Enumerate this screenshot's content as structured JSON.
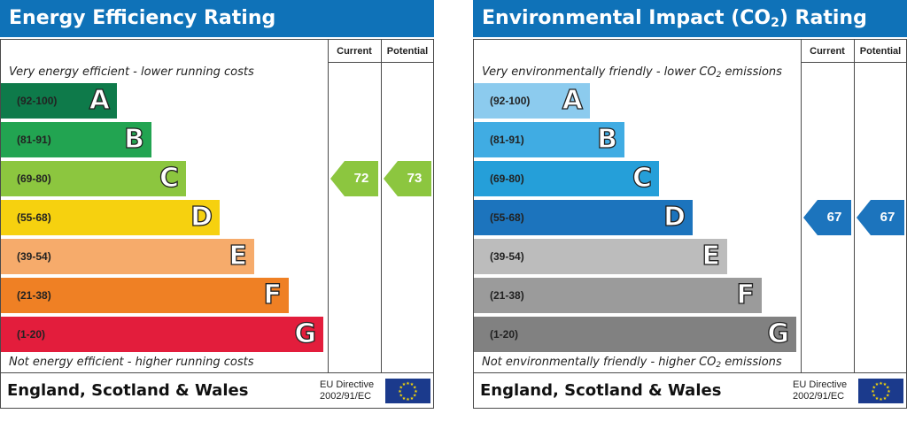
{
  "chart_data": [
    {
      "type": "bar",
      "title": "Energy Efficiency Rating",
      "columns": [
        "Current",
        "Potential"
      ],
      "top_note": "Very energy efficient - lower running costs",
      "bottom_note": "Not energy efficient - higher running costs",
      "bands": [
        {
          "range": "(92-100)",
          "letter": "A",
          "color": "#0e7a4a"
        },
        {
          "range": "(81-91)",
          "letter": "B",
          "color": "#22a451"
        },
        {
          "range": "(69-80)",
          "letter": "C",
          "color": "#8cc63f"
        },
        {
          "range": "(55-68)",
          "letter": "D",
          "color": "#f6d10f"
        },
        {
          "range": "(39-54)",
          "letter": "E",
          "color": "#f6ab6b"
        },
        {
          "range": "(21-38)",
          "letter": "F",
          "color": "#ef8024"
        },
        {
          "range": "(1-20)",
          "letter": "G",
          "color": "#e31d3c"
        }
      ],
      "current": {
        "value": 72,
        "band": "C",
        "color": "#8cc63f"
      },
      "potential": {
        "value": 73,
        "band": "C",
        "color": "#8cc63f"
      },
      "footer": {
        "region": "England, Scotland & Wales",
        "directive_line1": "EU Directive",
        "directive_line2": "2002/91/EC"
      }
    },
    {
      "type": "bar",
      "title": "Environmental Impact (CO",
      "title_sub": "2",
      "title_end": ") Rating",
      "columns": [
        "Current",
        "Potential"
      ],
      "top_note": "Very environmentally friendly - lower CO",
      "top_note_sub": "2",
      "top_note_end": " emissions",
      "bottom_note": "Not environmentally friendly - higher CO",
      "bottom_note_sub": "2",
      "bottom_note_end": " emissions",
      "bands": [
        {
          "range": "(92-100)",
          "letter": "A",
          "color": "#8ccbee"
        },
        {
          "range": "(81-91)",
          "letter": "B",
          "color": "#40ace3"
        },
        {
          "range": "(69-80)",
          "letter": "C",
          "color": "#259fd9"
        },
        {
          "range": "(55-68)",
          "letter": "D",
          "color": "#1c74bd"
        },
        {
          "range": "(39-54)",
          "letter": "E",
          "color": "#bcbcbc"
        },
        {
          "range": "(21-38)",
          "letter": "F",
          "color": "#9b9b9b"
        },
        {
          "range": "(1-20)",
          "letter": "G",
          "color": "#818181"
        }
      ],
      "current": {
        "value": 67,
        "band": "D",
        "color": "#1c74bd"
      },
      "potential": {
        "value": 67,
        "band": "D",
        "color": "#1c74bd"
      },
      "footer": {
        "region": "England, Scotland & Wales",
        "directive_line1": "EU Directive",
        "directive_line2": "2002/91/EC"
      }
    }
  ]
}
